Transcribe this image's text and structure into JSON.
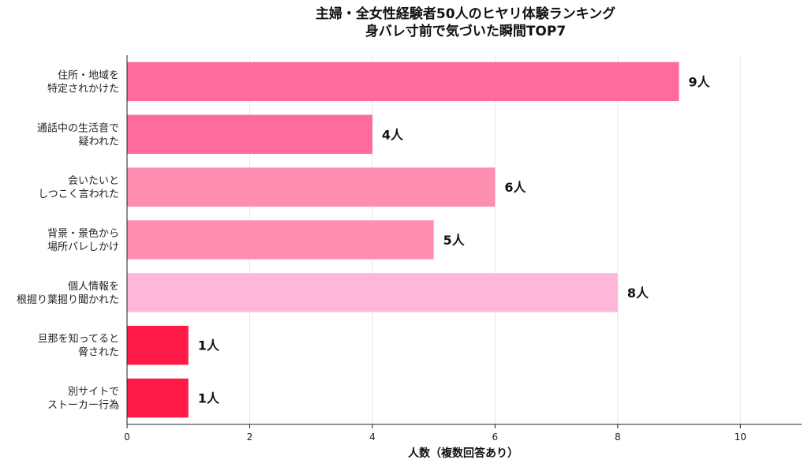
{
  "chart_data": {
    "type": "bar",
    "orientation": "horizontal",
    "title": [
      "主婦・全女性経験者50人のヒヤリ体験ランキング",
      "身バレ寸前で気づいた瞬間TOP7"
    ],
    "categories": [
      "住所・地域を\n特定されかけた",
      "通話中の生活音で\n疑われた",
      "会いたいと\nしつこく言われた",
      "背景・景色から\n場所バレしかけ",
      "個人情報を\n根掘り葉掘り聞かれた",
      "旦那を知ってると\n脅された",
      "別サイトで\nストーカー行為"
    ],
    "values": [
      9,
      4,
      6,
      5,
      8,
      1,
      1
    ],
    "data_labels": [
      "9人",
      "4人",
      "6人",
      "5人",
      "8人",
      "1人",
      "1人"
    ],
    "colors": [
      "#ff6b9a",
      "#ff6b9a",
      "#ff8fb0",
      "#ff8fb0",
      "#ffb6d8",
      "#ff1a48",
      "#ff1a48"
    ],
    "xlabel": "人数（複数回答あり）",
    "ylabel": "",
    "xlim": [
      0,
      11
    ],
    "xticks": [
      0,
      2,
      4,
      6,
      8,
      10
    ],
    "grid": "vertical",
    "legend": "none"
  }
}
